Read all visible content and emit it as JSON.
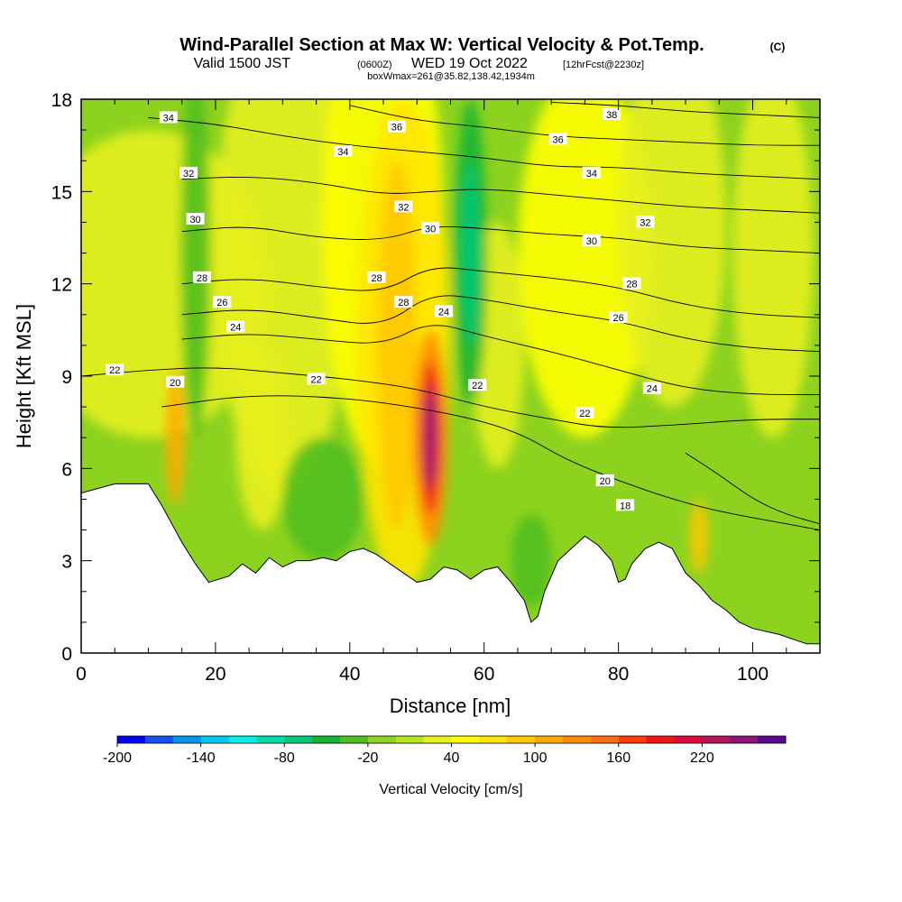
{
  "header": {
    "title": "Wind-Parallel Section at Max W: Vertical Velocity & Pot.Temp.",
    "title_mark": "(C)",
    "valid_prefix": "Valid 1500 JST",
    "valid_z": "(0600Z)",
    "valid_date": "WED 19 Oct 2022",
    "forecast": "[12hrFcst@2230z]",
    "box_info": "boxWmax=261@35.82,138.42,1934m"
  },
  "chart_data": {
    "type": "heatmap",
    "xlabel": "Distance [nm]",
    "ylabel": "Height [Kft MSL]",
    "xlim": [
      0,
      110
    ],
    "ylim": [
      0,
      18
    ],
    "x_ticks": [
      0,
      20,
      40,
      60,
      80,
      100
    ],
    "y_ticks": [
      0,
      3,
      6,
      9,
      12,
      15,
      18
    ],
    "grid": false,
    "colorbar": {
      "label": "Vertical Velocity [cm/s]",
      "position": "bottom",
      "tick_labels": [
        "-200",
        "-140",
        "-80",
        "-20",
        "40",
        "100",
        "160",
        "220"
      ],
      "range": [
        -200,
        280
      ],
      "colors": [
        "#0000f5",
        "#1450f0",
        "#0096f0",
        "#00c8f0",
        "#00f0e6",
        "#00dcaa",
        "#00c878",
        "#14b432",
        "#50be1e",
        "#8cd21e",
        "#b4e61e",
        "#e6f01e",
        "#ffff00",
        "#ffe600",
        "#ffc800",
        "#ffaa00",
        "#ff8c00",
        "#ff6e14",
        "#ff3c0a",
        "#f01414",
        "#dc0a3c",
        "#b4145a",
        "#8c1478",
        "#5a0a8c"
      ]
    },
    "vertical_velocity_max_cells": [
      {
        "x": 52,
        "height_kft": 6.8,
        "w_cms": 261,
        "sign": "updraft"
      },
      {
        "x": 14,
        "height_kft": 7.0,
        "w_cms": 110,
        "sign": "updraft"
      },
      {
        "x": 47,
        "height_kft": 10.5,
        "w_cms": 100,
        "sign": "updraft"
      },
      {
        "x": 92,
        "height_kft": 3.8,
        "w_cms": 90,
        "sign": "updraft"
      },
      {
        "x": 58,
        "height_kft": 13.0,
        "w_cms": -70,
        "sign": "downdraft"
      },
      {
        "x": 17,
        "height_kft": 14.0,
        "w_cms": -40,
        "sign": "downdraft"
      }
    ],
    "terrain_top_kft": [
      [
        0,
        5.2
      ],
      [
        5,
        5.5
      ],
      [
        10,
        5.5
      ],
      [
        12,
        4.8
      ],
      [
        15,
        3.6
      ],
      [
        17,
        2.9
      ],
      [
        19,
        2.3
      ],
      [
        22,
        2.5
      ],
      [
        24,
        2.9
      ],
      [
        26,
        2.6
      ],
      [
        28,
        3.1
      ],
      [
        30,
        2.8
      ],
      [
        32,
        3.0
      ],
      [
        34,
        3.0
      ],
      [
        36,
        3.1
      ],
      [
        38,
        3.0
      ],
      [
        40,
        3.3
      ],
      [
        42,
        3.4
      ],
      [
        44,
        3.2
      ],
      [
        46,
        2.9
      ],
      [
        48,
        2.6
      ],
      [
        50,
        2.3
      ],
      [
        52,
        2.4
      ],
      [
        54,
        2.8
      ],
      [
        56,
        2.7
      ],
      [
        58,
        2.4
      ],
      [
        60,
        2.7
      ],
      [
        62,
        2.8
      ],
      [
        64,
        2.3
      ],
      [
        66,
        1.7
      ],
      [
        67,
        1.0
      ],
      [
        68,
        1.2
      ],
      [
        69,
        2.0
      ],
      [
        71,
        3.0
      ],
      [
        73,
        3.4
      ],
      [
        75,
        3.8
      ],
      [
        77,
        3.5
      ],
      [
        79,
        3.0
      ],
      [
        80,
        2.3
      ],
      [
        81,
        2.4
      ],
      [
        82,
        2.9
      ],
      [
        84,
        3.4
      ],
      [
        86,
        3.6
      ],
      [
        88,
        3.4
      ],
      [
        90,
        2.6
      ],
      [
        92,
        2.2
      ],
      [
        94,
        1.7
      ],
      [
        96,
        1.4
      ],
      [
        98,
        1.0
      ],
      [
        100,
        0.8
      ],
      [
        104,
        0.6
      ],
      [
        108,
        0.3
      ],
      [
        110,
        0.3
      ]
    ],
    "potential_temperature_contours": [
      {
        "label": "18",
        "points": [
          [
            90,
            6.5
          ],
          [
            95,
            5.8
          ],
          [
            100,
            5.0
          ],
          [
            105,
            4.5
          ],
          [
            110,
            4.2
          ]
        ]
      },
      {
        "label": "20",
        "points": [
          [
            12,
            8.0
          ],
          [
            25,
            8.4
          ],
          [
            40,
            8.3
          ],
          [
            55,
            7.8
          ],
          [
            65,
            7.2
          ],
          [
            72,
            6.3
          ],
          [
            80,
            5.6
          ],
          [
            88,
            5.0
          ],
          [
            95,
            4.6
          ],
          [
            105,
            4.2
          ],
          [
            110,
            4.0
          ]
        ]
      },
      {
        "label": "22",
        "points": [
          [
            0,
            9.0
          ],
          [
            10,
            9.2
          ],
          [
            20,
            9.3
          ],
          [
            30,
            9.1
          ],
          [
            40,
            8.9
          ],
          [
            50,
            8.6
          ],
          [
            60,
            8.0
          ],
          [
            70,
            7.6
          ],
          [
            78,
            7.3
          ],
          [
            88,
            7.4
          ],
          [
            100,
            7.6
          ],
          [
            110,
            7.6
          ]
        ]
      },
      {
        "label": "24",
        "points": [
          [
            15,
            10.2
          ],
          [
            25,
            10.4
          ],
          [
            35,
            10.2
          ],
          [
            45,
            10.0
          ],
          [
            52,
            10.8
          ],
          [
            60,
            10.3
          ],
          [
            70,
            9.8
          ],
          [
            80,
            9.2
          ],
          [
            90,
            8.6
          ],
          [
            100,
            8.4
          ],
          [
            110,
            8.4
          ]
        ]
      },
      {
        "label": "26",
        "points": [
          [
            15,
            11.0
          ],
          [
            25,
            11.2
          ],
          [
            35,
            10.9
          ],
          [
            45,
            10.6
          ],
          [
            52,
            11.7
          ],
          [
            60,
            11.5
          ],
          [
            70,
            11.1
          ],
          [
            80,
            10.8
          ],
          [
            90,
            10.2
          ],
          [
            100,
            9.9
          ],
          [
            110,
            9.8
          ]
        ]
      },
      {
        "label": "28",
        "points": [
          [
            15,
            12.0
          ],
          [
            25,
            12.2
          ],
          [
            35,
            11.9
          ],
          [
            45,
            11.7
          ],
          [
            52,
            12.6
          ],
          [
            60,
            12.4
          ],
          [
            70,
            12.2
          ],
          [
            80,
            11.9
          ],
          [
            90,
            11.3
          ],
          [
            100,
            11.0
          ],
          [
            110,
            10.9
          ]
        ]
      },
      {
        "label": "30",
        "points": [
          [
            15,
            13.7
          ],
          [
            25,
            13.9
          ],
          [
            35,
            13.5
          ],
          [
            45,
            13.4
          ],
          [
            52,
            13.9
          ],
          [
            60,
            13.8
          ],
          [
            70,
            13.6
          ],
          [
            80,
            13.5
          ],
          [
            90,
            13.2
          ],
          [
            100,
            13.1
          ],
          [
            110,
            13.0
          ]
        ]
      },
      {
        "label": "32",
        "points": [
          [
            15,
            15.4
          ],
          [
            25,
            15.5
          ],
          [
            35,
            15.3
          ],
          [
            45,
            14.9
          ],
          [
            52,
            15.0
          ],
          [
            60,
            15.1
          ],
          [
            70,
            14.9
          ],
          [
            80,
            14.7
          ],
          [
            90,
            14.5
          ],
          [
            100,
            14.4
          ],
          [
            110,
            14.3
          ]
        ]
      },
      {
        "label": "34",
        "points": [
          [
            10,
            17.4
          ],
          [
            20,
            17.2
          ],
          [
            30,
            16.8
          ],
          [
            40,
            16.5
          ],
          [
            50,
            16.3
          ],
          [
            60,
            16.1
          ],
          [
            70,
            15.8
          ],
          [
            80,
            15.8
          ],
          [
            90,
            15.6
          ],
          [
            100,
            15.5
          ],
          [
            110,
            15.4
          ]
        ]
      },
      {
        "label": "36",
        "points": [
          [
            40,
            17.8
          ],
          [
            50,
            17.3
          ],
          [
            60,
            17.1
          ],
          [
            70,
            16.8
          ],
          [
            80,
            16.7
          ],
          [
            90,
            16.6
          ],
          [
            100,
            16.5
          ],
          [
            110,
            16.5
          ]
        ]
      },
      {
        "label": "38",
        "points": [
          [
            70,
            17.9
          ],
          [
            80,
            17.8
          ],
          [
            90,
            17.6
          ],
          [
            100,
            17.5
          ],
          [
            110,
            17.4
          ]
        ]
      }
    ],
    "contour_labels": [
      {
        "text": "34",
        "x": 13,
        "y": 17.4
      },
      {
        "text": "32",
        "x": 16,
        "y": 15.6
      },
      {
        "text": "30",
        "x": 17,
        "y": 14.1
      },
      {
        "text": "28",
        "x": 18,
        "y": 12.2
      },
      {
        "text": "26",
        "x": 21,
        "y": 11.4
      },
      {
        "text": "24",
        "x": 23,
        "y": 10.6
      },
      {
        "text": "22",
        "x": 5,
        "y": 9.2
      },
      {
        "text": "20",
        "x": 14,
        "y": 8.8
      },
      {
        "text": "34",
        "x": 39,
        "y": 16.3
      },
      {
        "text": "36",
        "x": 47,
        "y": 17.1
      },
      {
        "text": "32",
        "x": 48,
        "y": 14.5
      },
      {
        "text": "30",
        "x": 52,
        "y": 13.8
      },
      {
        "text": "28",
        "x": 44,
        "y": 12.2
      },
      {
        "text": "28",
        "x": 48,
        "y": 11.4
      },
      {
        "text": "24",
        "x": 54,
        "y": 11.1
      },
      {
        "text": "22",
        "x": 35,
        "y": 8.9
      },
      {
        "text": "22",
        "x": 59,
        "y": 8.7
      },
      {
        "text": "38",
        "x": 79,
        "y": 17.5
      },
      {
        "text": "36",
        "x": 71,
        "y": 16.7
      },
      {
        "text": "34",
        "x": 76,
        "y": 15.6
      },
      {
        "text": "32",
        "x": 84,
        "y": 14.0
      },
      {
        "text": "30",
        "x": 76,
        "y": 13.4
      },
      {
        "text": "28",
        "x": 82,
        "y": 12.0
      },
      {
        "text": "26",
        "x": 80,
        "y": 10.9
      },
      {
        "text": "24",
        "x": 85,
        "y": 8.6
      },
      {
        "text": "22",
        "x": 75,
        "y": 7.8
      },
      {
        "text": "20",
        "x": 78,
        "y": 5.6
      },
      {
        "text": "18",
        "x": 81,
        "y": 4.8
      }
    ]
  }
}
